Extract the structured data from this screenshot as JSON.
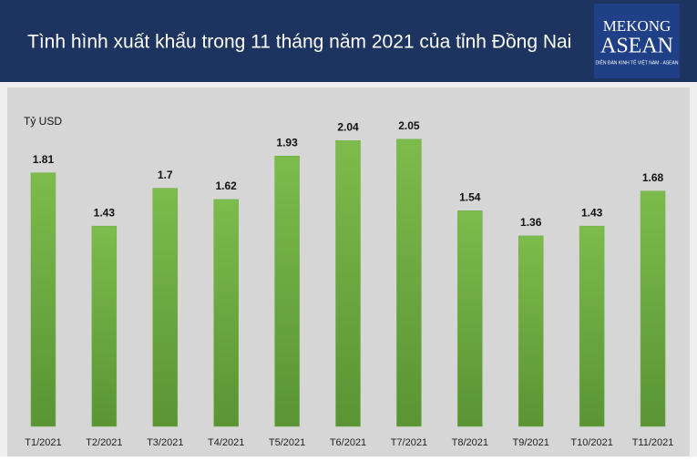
{
  "logo": {
    "line1": "MEKONG",
    "line2": "ASEAN",
    "tagline": "DIỄN ĐÀN KINH TẾ VIỆT NAM - ASEAN"
  },
  "chart_data": {
    "type": "bar",
    "title": "Tình hình xuất khẩu trong 11 tháng năm 2021 của tỉnh Đồng Nai",
    "y_label": "Tỷ USD",
    "categories": [
      "T1/2021",
      "T2/2021",
      "T3/2021",
      "T4/2021",
      "T5/2021",
      "T6/2021",
      "T7/2021",
      "T8/2021",
      "T9/2021",
      "T10/2021",
      "T11/2021"
    ],
    "values": [
      1.81,
      1.43,
      1.7,
      1.62,
      1.93,
      2.04,
      2.05,
      1.54,
      1.36,
      1.43,
      1.68
    ],
    "color": "#70ad47",
    "ylim": [
      0,
      2.4
    ]
  }
}
